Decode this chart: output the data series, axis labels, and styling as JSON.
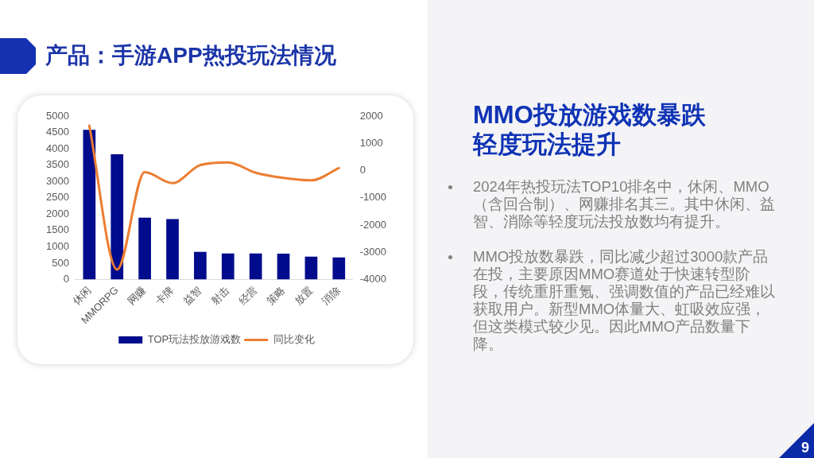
{
  "chart_data": {
    "type": "bar",
    "title": "产品：手游APP热投玩法情况",
    "subtitle": "MMO投放游戏数暴跌轻度玩法提升",
    "annotations": [
      "2024年热投玩法TOP10排名中，休闲、MMO（含回合制）、网赚排名其三。其中休闲、益智、消除等轻度玩法投放数均有提升。",
      "MMO投放数暴跌，同比减少超过3000款产品在投，主要原因MMO赛道处于快速转型阶段，传统重肝重氪、强调数值的产品已经难以获取用户。新型MMO体量大、虹吸效应强，但这类模式较少见。因此MMO产品数量下降。",
      "9"
    ],
    "categories": [
      "休闲",
      "MMORPG",
      "网赚",
      "卡牌",
      "益智",
      "射击",
      "经营",
      "策略",
      "放置",
      "消除"
    ],
    "series": [
      {
        "name": "TOP玩法投放游戏数",
        "color": "#000c8c",
        "values": [
          4580,
          3830,
          1890,
          1850,
          850,
          800,
          800,
          790,
          700,
          680
        ]
      },
      {
        "name": "同比变化",
        "type": "line",
        "axis": "y2",
        "color": "#ed7d31",
        "values": [
          1650,
          -3630,
          -60,
          -460,
          200,
          300,
          -80,
          -270,
          -360,
          90
        ]
      }
    ],
    "ylim": [
      0,
      5000
    ],
    "yticks": [
      0,
      500,
      1000,
      1500,
      2000,
      2500,
      3000,
      3500,
      4000,
      4500,
      5000
    ],
    "y2lim": [
      -4000,
      2000
    ],
    "y2ticks": [
      -4000,
      -3000,
      -2000,
      -1000,
      0,
      1000,
      2000
    ],
    "grid": false,
    "legend": "bottom",
    "marker": "none"
  }
}
